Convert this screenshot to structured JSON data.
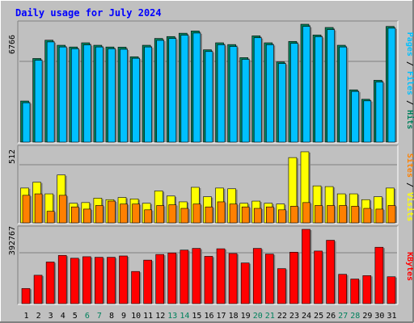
{
  "chart_data": {
    "type": "bar",
    "title": "Daily usage for July 2024",
    "categories": [
      "1",
      "2",
      "3",
      "4",
      "5",
      "6",
      "7",
      "8",
      "9",
      "10",
      "11",
      "12",
      "13",
      "14",
      "15",
      "16",
      "17",
      "18",
      "19",
      "20",
      "21",
      "22",
      "23",
      "24",
      "25",
      "26",
      "27",
      "28",
      "29",
      "30",
      "31"
    ],
    "weekend_days": [
      6,
      7,
      13,
      14,
      20,
      21,
      27,
      28
    ],
    "panels": [
      {
        "key": "hits",
        "scale_label": "6766",
        "ymax": 6766,
        "legend": [
          "Pages",
          "Files",
          "Hits"
        ],
        "series": [
          {
            "name": "Hits",
            "values": [
              2360,
              4800,
              5850,
              5560,
              5460,
              5700,
              5560,
              5460,
              5450,
              4900,
              5560,
              5950,
              6060,
              6250,
              6380,
              5300,
              5700,
              5600,
              4850,
              6100,
              5700,
              4600,
              5780,
              6766,
              6150,
              6580,
              5560,
              3000,
              2460,
              3550,
              6640
            ]
          },
          {
            "name": "Files",
            "values": [
              2260,
              4700,
              5750,
              5460,
              5360,
              5580,
              5460,
              5360,
              5330,
              4810,
              5460,
              5840,
              5950,
              6140,
              6260,
              5200,
              5590,
              5490,
              4750,
              5990,
              5590,
              4510,
              5670,
              6640,
              6050,
              6460,
              5460,
              2910,
              2370,
              3450,
              6540
            ]
          }
        ]
      },
      {
        "key": "visits",
        "scale_label": "512",
        "ymax": 512,
        "legend": [
          "Sites",
          "Visits"
        ],
        "series": [
          {
            "name": "Visits",
            "values": [
              240,
              280,
              200,
              330,
              135,
              140,
              170,
              160,
              175,
              165,
              135,
              220,
              185,
              145,
              245,
              180,
              240,
              235,
              135,
              150,
              135,
              130,
              450,
              490,
              255,
              250,
              200,
              200,
              160,
              180,
              240
            ]
          },
          {
            "name": "Sites",
            "values": [
              190,
              200,
              80,
              190,
              110,
              95,
              120,
              150,
              130,
              130,
              90,
              120,
              125,
              100,
              130,
              110,
              145,
              130,
              110,
              100,
              110,
              90,
              115,
              140,
              120,
              120,
              120,
              115,
              100,
              95,
              120
            ]
          }
        ]
      },
      {
        "key": "kbytes",
        "scale_label": "392767",
        "ymax": 392767,
        "legend": [
          "KBytes"
        ],
        "series": [
          {
            "name": "KBytes",
            "values": [
              80000,
              150000,
              220000,
              255000,
              240000,
              248000,
              245000,
              245000,
              252000,
              170000,
              230000,
              260000,
              268000,
              283000,
              292000,
              250000,
              290000,
              265000,
              215000,
              292000,
              262000,
              185000,
              272000,
              392767,
              278000,
              335000,
              155000,
              130000,
              148000,
              298000,
              142000
            ]
          }
        ]
      }
    ],
    "colors": {
      "background": "#C0C0C0",
      "title": "#0000FF",
      "hits": "#00805C",
      "files": "#00C0FF",
      "pages": "#00C0FF",
      "visits": "#FFFF00",
      "sites": "#FF8000",
      "kbytes": "#FF0000",
      "weekend_label": "#00805C"
    }
  }
}
